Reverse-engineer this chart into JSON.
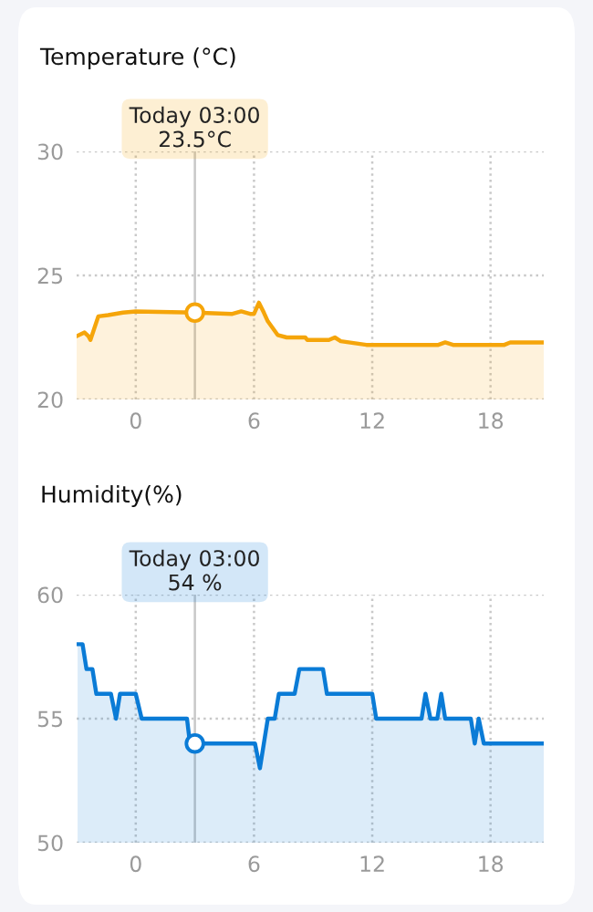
{
  "chart_data": [
    {
      "type": "area",
      "title": "Temperature (°C)",
      "grid": true,
      "legend": false,
      "xlim": [
        -3,
        20.7
      ],
      "xticks": [
        0,
        6,
        12,
        18
      ],
      "ylim": [
        20,
        30
      ],
      "yticks": [
        20,
        25,
        30
      ],
      "ref_lines": [
        {
          "axis": "x",
          "value": 3,
          "color": "#c8c8c8",
          "line_style": "solid"
        }
      ],
      "annotations": [
        "Today 03:00\n23.5°C"
      ],
      "series": [
        {
          "color": "#f5a50a",
          "x": [
            -3,
            -2.6,
            -2.4,
            -2.3,
            -1.9,
            -1.4,
            -0.65,
            0,
            3,
            4.9,
            5.35,
            5.8,
            6.0,
            6.25,
            6.5,
            6.7,
            7.2,
            7.66,
            8.6,
            8.7,
            9.8,
            10.1,
            10.4,
            11.7,
            15.35,
            15.7,
            16.1,
            18.7,
            19.0,
            20.7
          ],
          "values": [
            22.55,
            22.7,
            22.55,
            22.4,
            23.35,
            23.4,
            23.5,
            23.55,
            23.5,
            23.45,
            23.55,
            23.45,
            23.45,
            23.9,
            23.5,
            23.15,
            22.6,
            22.5,
            22.5,
            22.4,
            22.4,
            22.5,
            22.35,
            22.2,
            22.2,
            22.3,
            22.2,
            22.2,
            22.3,
            22.3
          ]
        },
        {
          "type": "scatter",
          "marker": "circle",
          "color": "#f5a50a",
          "x": [
            3
          ],
          "values": [
            23.5
          ]
        }
      ]
    },
    {
      "type": "area",
      "title": "Humidity(%)",
      "grid": true,
      "legend": false,
      "xlim": [
        -3,
        20.7
      ],
      "xticks": [
        0,
        6,
        12,
        18
      ],
      "ylim": [
        50,
        60
      ],
      "yticks": [
        50,
        55,
        60
      ],
      "ref_lines": [
        {
          "axis": "x",
          "value": 3,
          "color": "#c8c8c8",
          "line_style": "solid"
        }
      ],
      "annotations": [
        "Today 03:00\n54 %"
      ],
      "series": [
        {
          "color": "#0a7bd6",
          "x": [
            -2.95,
            -2.7,
            -2.5,
            -2.2,
            -2.0,
            -1.26,
            -1.0,
            -0.8,
            0,
            0.3,
            2.6,
            2.75,
            3.0,
            6.05,
            6.3,
            6.5,
            6.7,
            7.05,
            7.26,
            8.06,
            8.3,
            9.5,
            9.7,
            12.0,
            12.2,
            14.5,
            14.7,
            14.95,
            15.3,
            15.5,
            15.7,
            17.0,
            17.2,
            17.4,
            17.66,
            20.7
          ],
          "values": [
            58,
            58,
            57,
            57,
            56,
            56,
            55,
            56,
            56,
            55,
            55,
            54,
            54,
            54,
            53,
            54,
            55,
            55,
            56,
            56,
            57,
            57,
            56,
            56,
            55,
            55,
            56,
            55,
            55,
            56,
            55,
            55,
            54,
            55,
            54,
            54
          ]
        },
        {
          "type": "scatter",
          "marker": "circle",
          "color": "#0a7bd6",
          "x": [
            3
          ],
          "values": [
            54
          ]
        }
      ]
    }
  ]
}
